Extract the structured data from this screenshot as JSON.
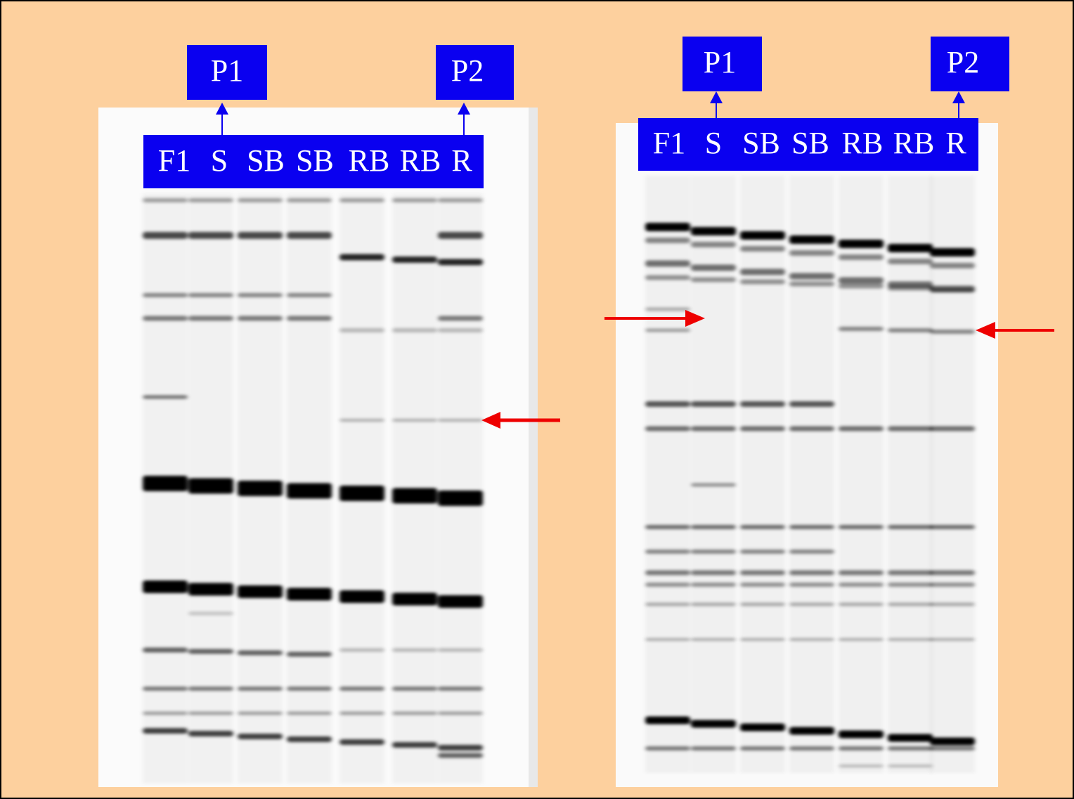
{
  "panels": [
    {
      "probe_left": "P1",
      "probe_right": "P2",
      "lanes": [
        "F1",
        "S",
        "SB",
        "SB",
        "RB",
        "RB",
        "R"
      ]
    },
    {
      "probe_left": "P1",
      "probe_right": "P2",
      "lanes": [
        "F1",
        "S",
        "SB",
        "SB",
        "RB",
        "RB",
        "R"
      ]
    }
  ]
}
